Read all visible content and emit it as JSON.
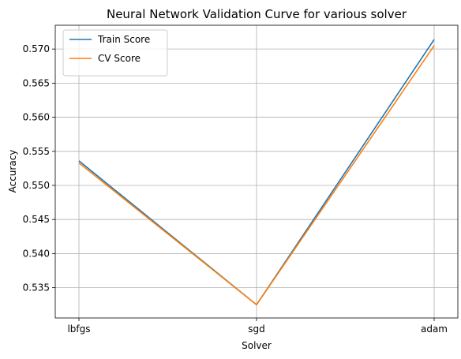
{
  "chart_data": {
    "type": "line",
    "title": "Neural Network Validation Curve for various solver",
    "xlabel": "Solver",
    "ylabel": "Accuracy",
    "categories": [
      "lbfgs",
      "sgd",
      "adam"
    ],
    "series": [
      {
        "name": "Train Score",
        "values": [
          0.5536,
          0.5325,
          0.5714
        ],
        "color": "#1f77b4"
      },
      {
        "name": "CV Score",
        "values": [
          0.5533,
          0.5325,
          0.5705
        ],
        "color": "#ff7f0e"
      }
    ],
    "ylim": [
      0.53056,
      0.57349
    ],
    "yticks": [
      "0.535",
      "0.540",
      "0.545",
      "0.550",
      "0.555",
      "0.560",
      "0.565",
      "0.570"
    ],
    "grid": true,
    "legend_position": "top-left"
  }
}
